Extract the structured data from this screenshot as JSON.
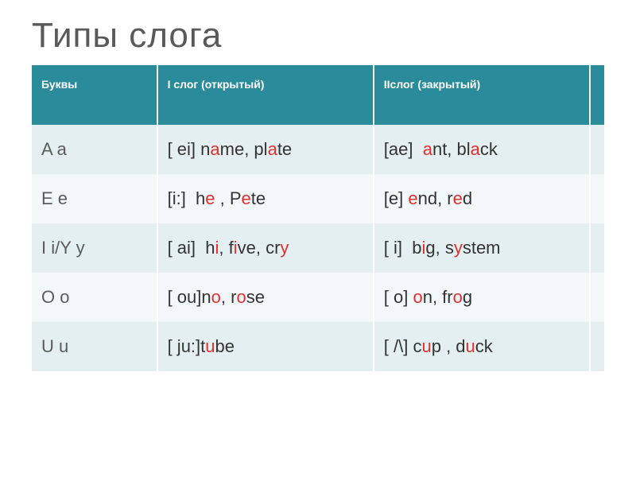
{
  "title": "Типы  слога",
  "columns": [
    "Буквы",
    "I слог (открытый)",
    "IIслог (закрытый)"
  ],
  "col_widths": [
    "22%",
    "38%",
    "38%"
  ],
  "highlight_color": "#e03030",
  "header_bg": "#2a8b9a",
  "row_bg_odd": "#e4eff1",
  "row_bg_even": "#f2f7f9",
  "rows": [
    {
      "letters": "A a",
      "open": [
        {
          "t": "[ ei] n"
        },
        {
          "t": "a",
          "hl": true
        },
        {
          "t": "me, pl"
        },
        {
          "t": "a",
          "hl": true
        },
        {
          "t": "te"
        }
      ],
      "closed": [
        {
          "t": "[ae]  "
        },
        {
          "t": "a",
          "hl": true
        },
        {
          "t": "nt, bl"
        },
        {
          "t": "a",
          "hl": true
        },
        {
          "t": "ck"
        }
      ]
    },
    {
      "letters": "E e",
      "open": [
        {
          "t": "[i:]  h"
        },
        {
          "t": "e",
          "hl": true
        },
        {
          "t": " , P"
        },
        {
          "t": "e",
          "hl": true
        },
        {
          "t": "te"
        }
      ],
      "closed": [
        {
          "t": "[e] "
        },
        {
          "t": "e",
          "hl": true
        },
        {
          "t": "nd, r"
        },
        {
          "t": "e",
          "hl": true
        },
        {
          "t": "d"
        }
      ]
    },
    {
      "letters": "I i/Y y",
      "open": [
        {
          "t": "[ ai]  h"
        },
        {
          "t": "i",
          "hl": true
        },
        {
          "t": ", f"
        },
        {
          "t": "i",
          "hl": true
        },
        {
          "t": "ve, cr"
        },
        {
          "t": "y",
          "hl": true
        }
      ],
      "closed": [
        {
          "t": "[ i]  b"
        },
        {
          "t": "i",
          "hl": true
        },
        {
          "t": "g, s"
        },
        {
          "t": "y",
          "hl": true
        },
        {
          "t": "stem"
        }
      ]
    },
    {
      "letters": "O o",
      "open": [
        {
          "t": "[ ou]n"
        },
        {
          "t": "o",
          "hl": true
        },
        {
          "t": ", r"
        },
        {
          "t": "o",
          "hl": true
        },
        {
          "t": "se"
        }
      ],
      "closed": [
        {
          "t": "[ o] "
        },
        {
          "t": "o",
          "hl": true
        },
        {
          "t": "n, fr"
        },
        {
          "t": "o",
          "hl": true
        },
        {
          "t": "g"
        }
      ]
    },
    {
      "letters": "U u",
      "open": [
        {
          "t": "[ ju:]t"
        },
        {
          "t": "u",
          "hl": true
        },
        {
          "t": "be"
        }
      ],
      "closed": [
        {
          "t": "[ /\\] c"
        },
        {
          "t": "u",
          "hl": true
        },
        {
          "t": "p , d"
        },
        {
          "t": "u",
          "hl": true
        },
        {
          "t": "ck"
        }
      ]
    }
  ]
}
